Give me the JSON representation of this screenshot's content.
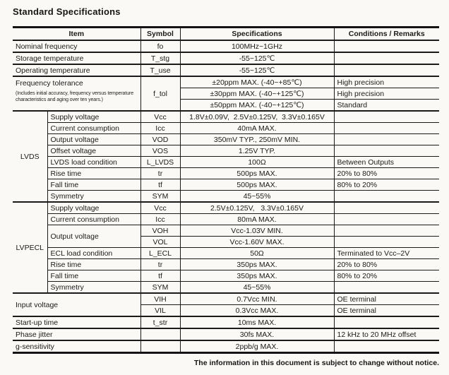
{
  "title": "Standard Specifications",
  "footer": "The information in this document is subject to change without notice.",
  "table": {
    "headers": {
      "item": "Item",
      "symbol": "Symbol",
      "specifications": "Specifications",
      "conditions": "Conditions / Remarks"
    },
    "nominal": {
      "item": "Nominal frequency",
      "symbol": "fo",
      "spec": "100MHz~1GHz"
    },
    "storage": {
      "item": "Storage temperature",
      "symbol": "T_stg",
      "spec": "-55~125℃"
    },
    "operating": {
      "item": "Operating temperature",
      "symbol": "T_use",
      "spec": "-55~125℃"
    },
    "freq_tolerance": {
      "item": "Frequency tolerance",
      "note": "(Includes initial accuracy, frequency versus temperature characteristics and aging over ten years.)",
      "symbol": "f_tol",
      "rows": [
        {
          "spec": "±20ppm MAX. (-40~+85℃)",
          "cond": "High precision"
        },
        {
          "spec": "±30ppm MAX. (-40~+125℃)",
          "cond": "High precision"
        },
        {
          "spec": "±50ppm MAX. (-40~+125℃)",
          "cond": "Standard"
        }
      ]
    },
    "lvds": {
      "group": "LVDS",
      "rows": [
        {
          "item": "Supply voltage",
          "symbol": "Vcc",
          "spec": "1.8V±0.09V,  2.5V±0.125V,  3.3V±0.165V",
          "cond": ""
        },
        {
          "item": "Current consumption",
          "symbol": "Icc",
          "spec": "40mA MAX.",
          "cond": ""
        },
        {
          "item": "Output voltage",
          "symbol": "VOD",
          "spec": "350mV TYP., 250mV MIN.",
          "cond": ""
        },
        {
          "item": "Offset voltage",
          "symbol": "VOS",
          "spec": "1.25V TYP.",
          "cond": ""
        },
        {
          "item": "LVDS load condition",
          "symbol": "L_LVDS",
          "spec": "100Ω",
          "cond": "Between Outputs"
        },
        {
          "item": "Rise time",
          "symbol": "tr",
          "spec": "500ps MAX.",
          "cond": "20% to 80%"
        },
        {
          "item": "Fall time",
          "symbol": "tf",
          "spec": "500ps MAX.",
          "cond": "80% to 20%"
        },
        {
          "item": "Symmetry",
          "symbol": "SYM",
          "spec": "45~55%",
          "cond": ""
        }
      ]
    },
    "lvpecl": {
      "group": "LVPECL",
      "supply": {
        "item": "Supply voltage",
        "symbol": "Vcc",
        "spec": "2.5V±0.125V,   3.3V±0.165V",
        "cond": ""
      },
      "current": {
        "item": "Current consumption",
        "symbol": "Icc",
        "spec": "80mA MAX.",
        "cond": ""
      },
      "output": {
        "item": "Output voltage",
        "voh": {
          "symbol": "VOH",
          "spec": "Vcc-1.03V MIN.",
          "cond": ""
        },
        "vol": {
          "symbol": "VOL",
          "spec": "Vcc-1.60V MAX.",
          "cond": ""
        }
      },
      "load": {
        "item": "ECL load condition",
        "symbol": "L_ECL",
        "spec": "50Ω",
        "cond": "Terminated to Vcc–2V"
      },
      "rise": {
        "item": "Rise time",
        "symbol": "tr",
        "spec": "350ps MAX.",
        "cond": "20% to 80%"
      },
      "fall": {
        "item": "Fall time",
        "symbol": "tf",
        "spec": "350ps MAX.",
        "cond": "80% to 20%"
      },
      "symmetry": {
        "item": "Symmetry",
        "symbol": "SYM",
        "spec": "45~55%",
        "cond": ""
      }
    },
    "input_voltage": {
      "item": "Input voltage",
      "vih": {
        "symbol": "VIH",
        "spec": "0.7Vcc MIN.",
        "cond": "OE terminal"
      },
      "vil": {
        "symbol": "VIL",
        "spec": "0.3Vcc MAX.",
        "cond": "OE terminal"
      }
    },
    "startup": {
      "item": "Start-up time",
      "symbol": "t_str",
      "spec": "10ms MAX.",
      "cond": ""
    },
    "phase_jitter": {
      "item": "Phase jitter",
      "symbol": "",
      "spec": "30fs MAX.",
      "cond": "12 kHz to 20 MHz offset"
    },
    "g_sensitivity": {
      "item": "g-sensitivity",
      "symbol": "",
      "spec": "2ppb/g MAX.",
      "cond": ""
    }
  }
}
